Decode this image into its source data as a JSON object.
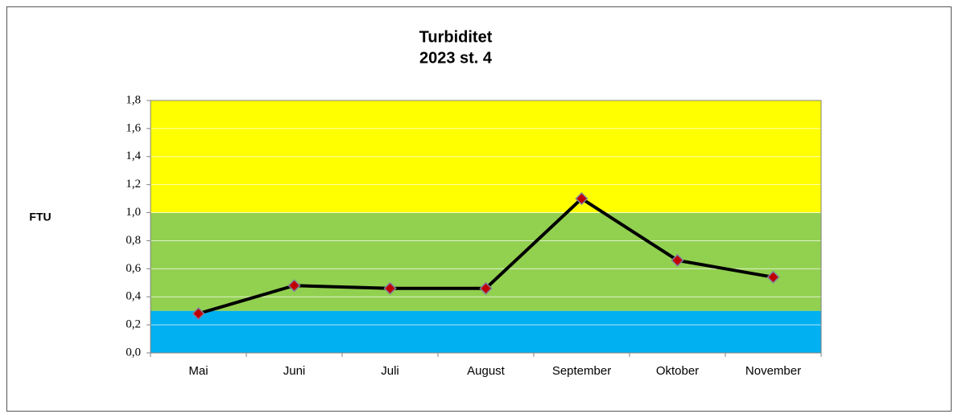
{
  "chart_data": {
    "type": "line",
    "title": "Turbiditet",
    "subtitle": "2023 st. 4",
    "ylabel": "FTU",
    "categories": [
      "Mai",
      "Juni",
      "Juli",
      "August",
      "September",
      "Oktober",
      "November"
    ],
    "series": [
      {
        "color": "#000000",
        "marker_color": "#c00000",
        "values": [
          0.28,
          0.48,
          0.46,
          0.46,
          1.1,
          0.66,
          0.54
        ]
      }
    ],
    "ylim": [
      0,
      1.8
    ],
    "yticks": [
      {
        "value": 0,
        "label": "0,0"
      },
      {
        "value": 0.2,
        "label": "0,2"
      },
      {
        "value": 0.4,
        "label": "0,4"
      },
      {
        "value": 0.6,
        "label": "0,6"
      },
      {
        "value": 0.8,
        "label": "0,8"
      },
      {
        "value": 1.0,
        "label": "1,0"
      },
      {
        "value": 1.2,
        "label": "1,2"
      },
      {
        "value": 1.4,
        "label": "1,4"
      },
      {
        "value": 1.6,
        "label": "1,6"
      },
      {
        "value": 1.8,
        "label": "1,8"
      }
    ],
    "bands": [
      {
        "from": 0,
        "to": 0.3,
        "color": "#00b0f0"
      },
      {
        "from": 0.3,
        "to": 1.0,
        "color": "#92d050"
      },
      {
        "from": 1.0,
        "to": 1.8,
        "color": "#ffff00"
      }
    ],
    "grid": true
  }
}
